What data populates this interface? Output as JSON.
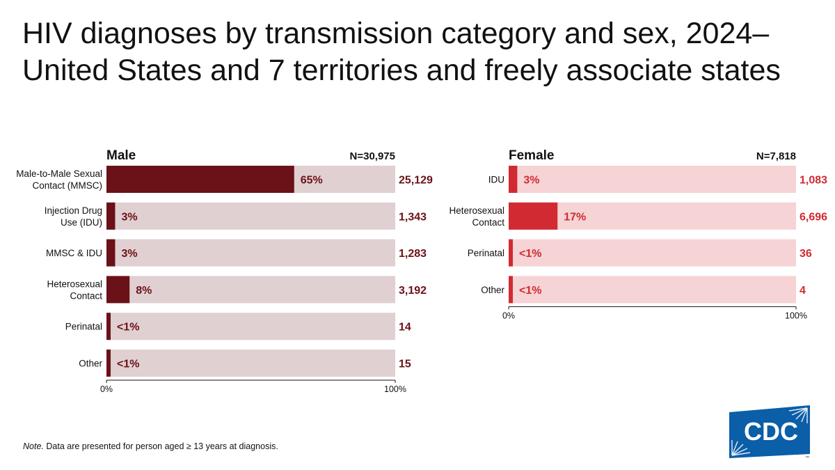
{
  "title": "HIV diagnoses by transmission category and sex, 2024–United States and 7 territories and freely associate states",
  "note": {
    "label": "Note.",
    "text": " Data are presented for person aged ≥ 13 years at diagnosis."
  },
  "logo": {
    "text": "CDC",
    "mark": "™"
  },
  "colors": {
    "male_bar": "#6b1118",
    "male_track": "#e0d0d2",
    "male_text": "#6b1118",
    "female_bar": "#d12a32",
    "female_track": "#f6d3d5",
    "female_text": "#d12a32"
  },
  "chart_data": [
    {
      "type": "bar",
      "orientation": "horizontal",
      "title": "Male",
      "n_label": "N=30,975",
      "xlim": [
        0,
        100
      ],
      "x_ticks": [
        "0%",
        "100%"
      ],
      "categories": [
        [
          "Male-to-Male Sexual",
          "Contact (MMSC)"
        ],
        [
          "Injection Drug",
          "Use (IDU)"
        ],
        [
          "MMSC & IDU"
        ],
        [
          "Heterosexual",
          "Contact"
        ],
        [
          "Perinatal"
        ],
        [
          "Other"
        ]
      ],
      "values": [
        65,
        3,
        3,
        8,
        0.5,
        0.5
      ],
      "pct_labels": [
        "65%",
        "3%",
        "3%",
        "8%",
        "<1%",
        "<1%"
      ],
      "counts": [
        "25,129",
        "1,343",
        "1,283",
        "3,192",
        "14",
        "15"
      ]
    },
    {
      "type": "bar",
      "orientation": "horizontal",
      "title": "Female",
      "n_label": "N=7,818",
      "xlim": [
        0,
        100
      ],
      "x_ticks": [
        "0%",
        "100%"
      ],
      "categories": [
        [
          "IDU"
        ],
        [
          "Heterosexual",
          "Contact"
        ],
        [
          "Perinatal"
        ],
        [
          "Other"
        ]
      ],
      "values": [
        3,
        17,
        0.5,
        0.5
      ],
      "pct_labels": [
        "3%",
        "17%",
        "<1%",
        "<1%"
      ],
      "counts": [
        "1,083",
        "6,696",
        "36",
        "4"
      ]
    }
  ]
}
